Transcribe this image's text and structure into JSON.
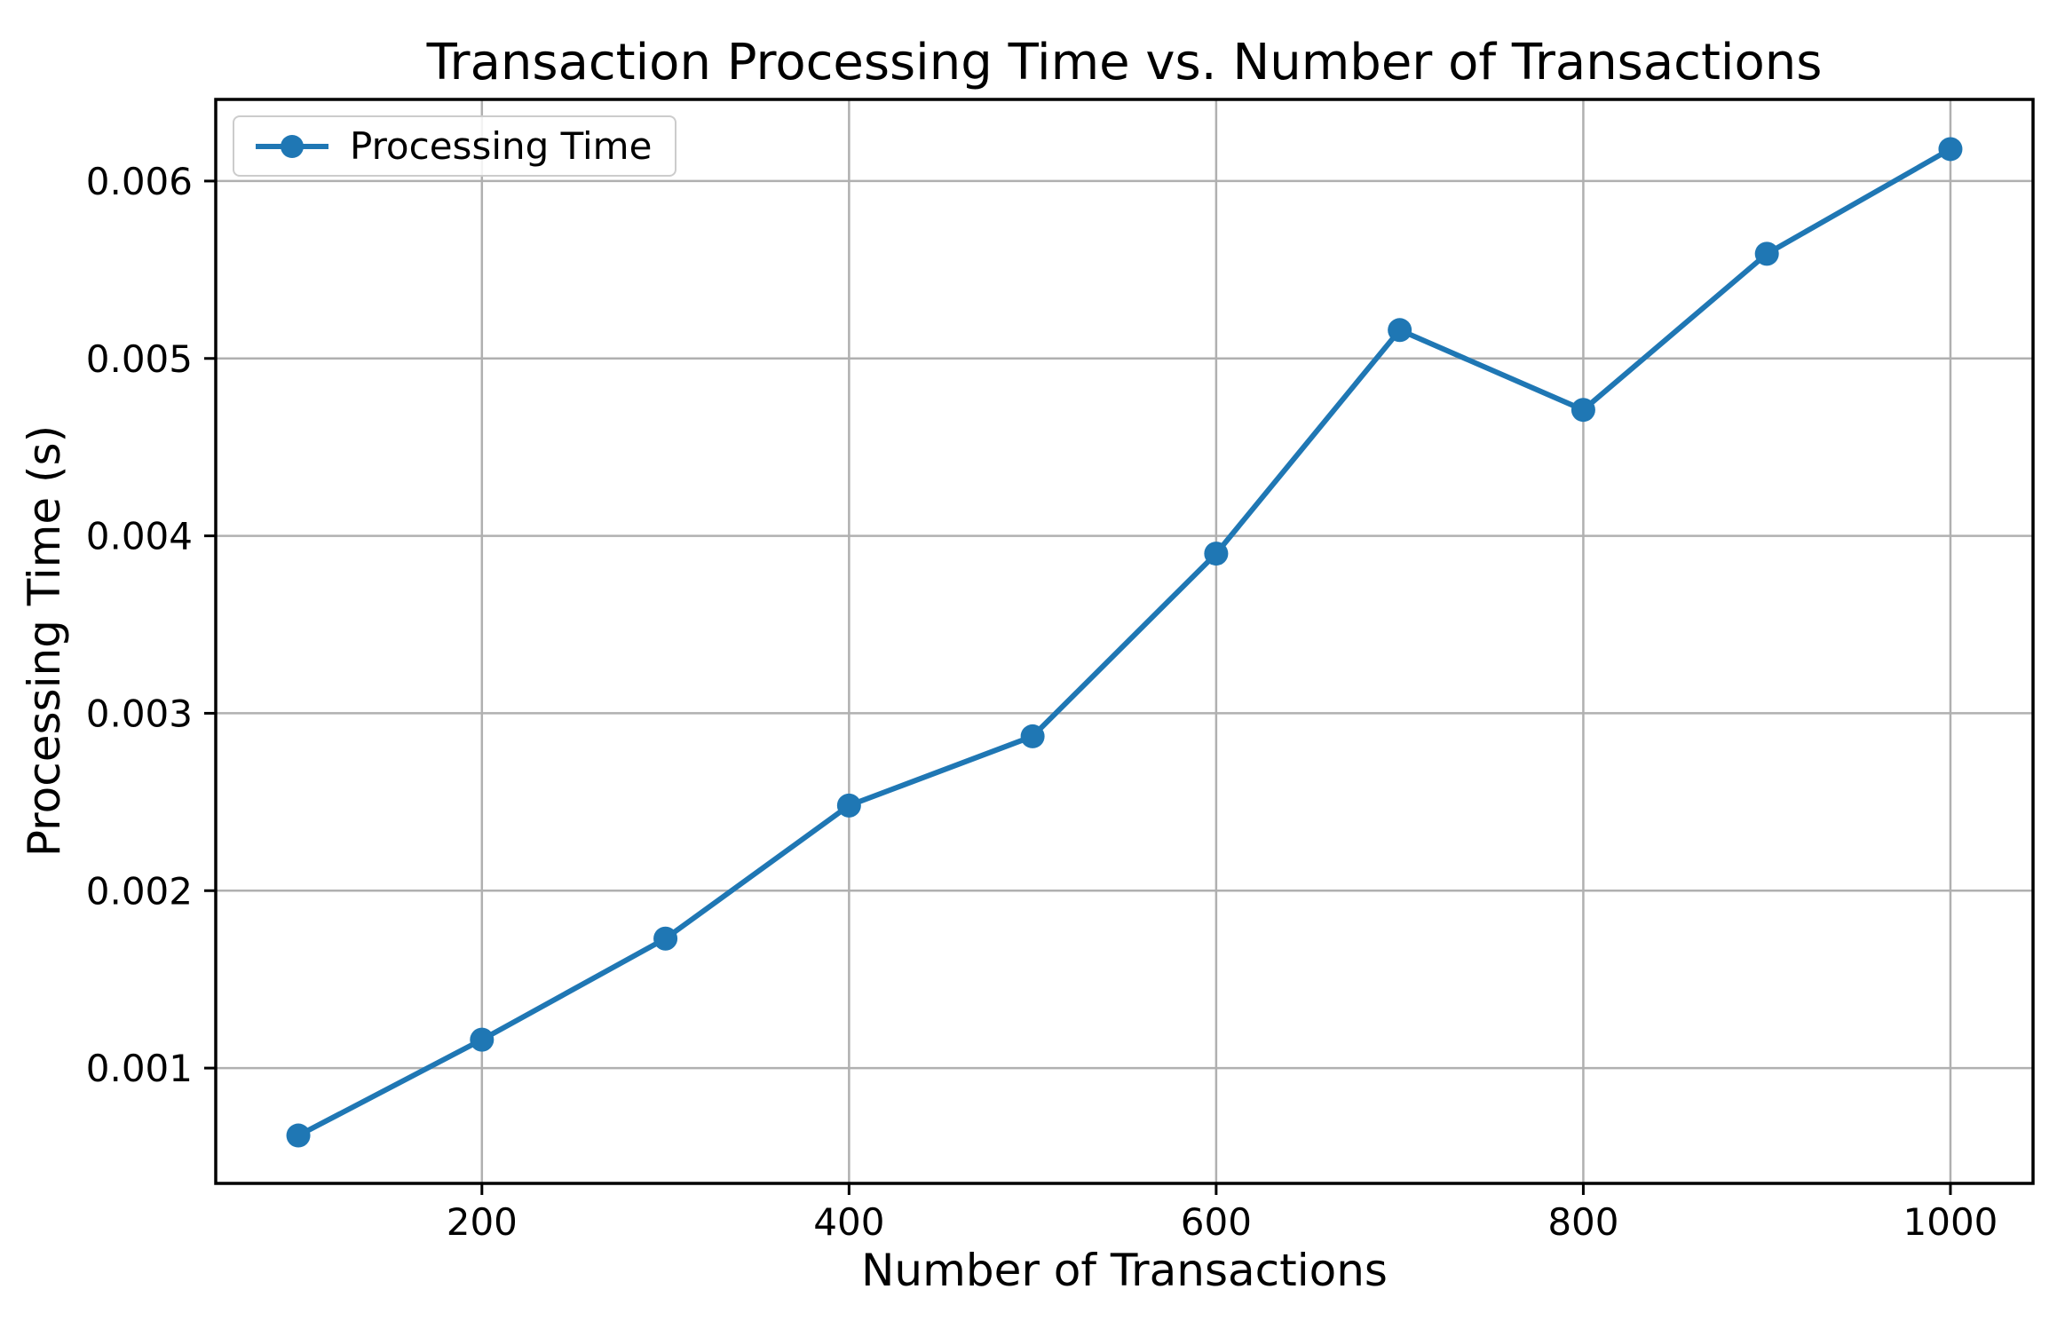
{
  "figure": {
    "background_color": "#ffffff",
    "text_color": "#000000"
  },
  "chart_data": {
    "type": "line",
    "title": "Transaction Processing Time vs. Number of Transactions",
    "xlabel": "Number of Transactions",
    "ylabel": "Processing Time (s)",
    "grid": true,
    "grid_color": "#b0b0b0",
    "spine_color": "#000000",
    "xlim": [
      55,
      1045
    ],
    "ylim": [
      0.00035,
      0.00646
    ],
    "x_ticks": [
      {
        "value": 200,
        "label": "200"
      },
      {
        "value": 400,
        "label": "400"
      },
      {
        "value": 600,
        "label": "600"
      },
      {
        "value": 800,
        "label": "800"
      },
      {
        "value": 1000,
        "label": "1000"
      }
    ],
    "y_ticks": [
      {
        "value": 0.001,
        "label": "0.001"
      },
      {
        "value": 0.002,
        "label": "0.002"
      },
      {
        "value": 0.003,
        "label": "0.003"
      },
      {
        "value": 0.004,
        "label": "0.004"
      },
      {
        "value": 0.005,
        "label": "0.005"
      },
      {
        "value": 0.006,
        "label": "0.006"
      }
    ],
    "series": [
      {
        "name": "Processing Time",
        "color": "#1f77b4",
        "marker": "circle",
        "x": [
          100,
          200,
          300,
          400,
          500,
          600,
          700,
          800,
          900,
          1000
        ],
        "y": [
          0.00062,
          0.00116,
          0.00173,
          0.00248,
          0.00287,
          0.0039,
          0.00516,
          0.00471,
          0.00559,
          0.00618
        ]
      }
    ],
    "legend": {
      "position": "upper-left",
      "entries": [
        "Processing Time"
      ],
      "border_color": "#cccccc"
    }
  }
}
